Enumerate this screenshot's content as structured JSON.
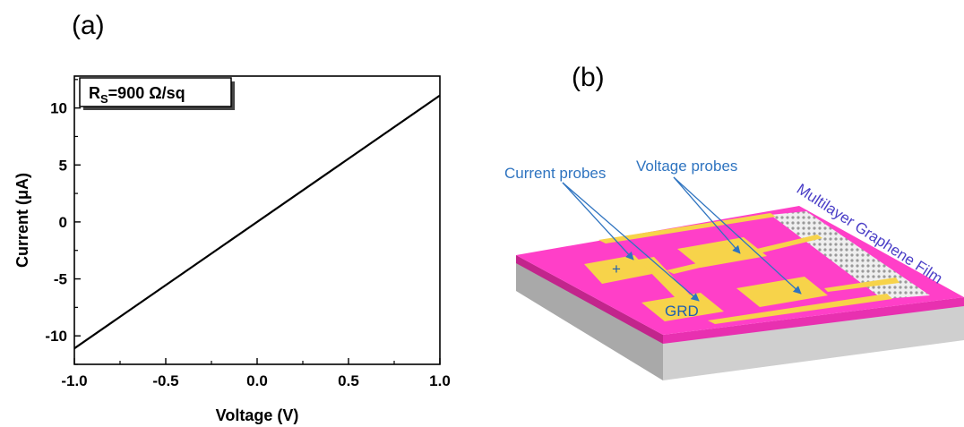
{
  "panel_a": {
    "label": "(a)"
  },
  "panel_b": {
    "label": "(b)"
  },
  "chart_data": {
    "type": "line",
    "xlabel": "Voltage (V)",
    "ylabel": "Current (μA)",
    "xlim": [
      -1.0,
      1.0
    ],
    "ylim": [
      -12.5,
      12.8
    ],
    "xticks": [
      -1.0,
      -0.5,
      0.0,
      0.5,
      1.0
    ],
    "xtick_labels": [
      "-1.0",
      "-0.5",
      "0.0",
      "0.5",
      "1.0"
    ],
    "yticks": [
      -10,
      -5,
      0,
      5,
      10
    ],
    "ytick_labels": [
      "-10",
      "-5",
      "0",
      "5",
      "10"
    ],
    "grid": false,
    "series": [
      {
        "x": [
          -1.0,
          1.0
        ],
        "y": [
          -11.1,
          11.1
        ],
        "color": "#000000"
      }
    ],
    "annotation": {
      "main": "R",
      "sub": "S",
      "rest": "=900 Ω/sq"
    }
  },
  "diagram": {
    "current_probes_label": "Current probes",
    "voltage_probes_label": "Voltage probes",
    "film_label": "Multilayer Graphene Film",
    "plus_label": "+",
    "grd_label": "GRD",
    "colors": {
      "film": "#ff3fc8",
      "film_edge": "#c2258c",
      "pad": "#f7d34a",
      "substrate_front": "#b9b9b9",
      "substrate_side": "#8f8f8f",
      "graphene": "#e4e4e4",
      "arrow": "#2f74c0"
    }
  }
}
